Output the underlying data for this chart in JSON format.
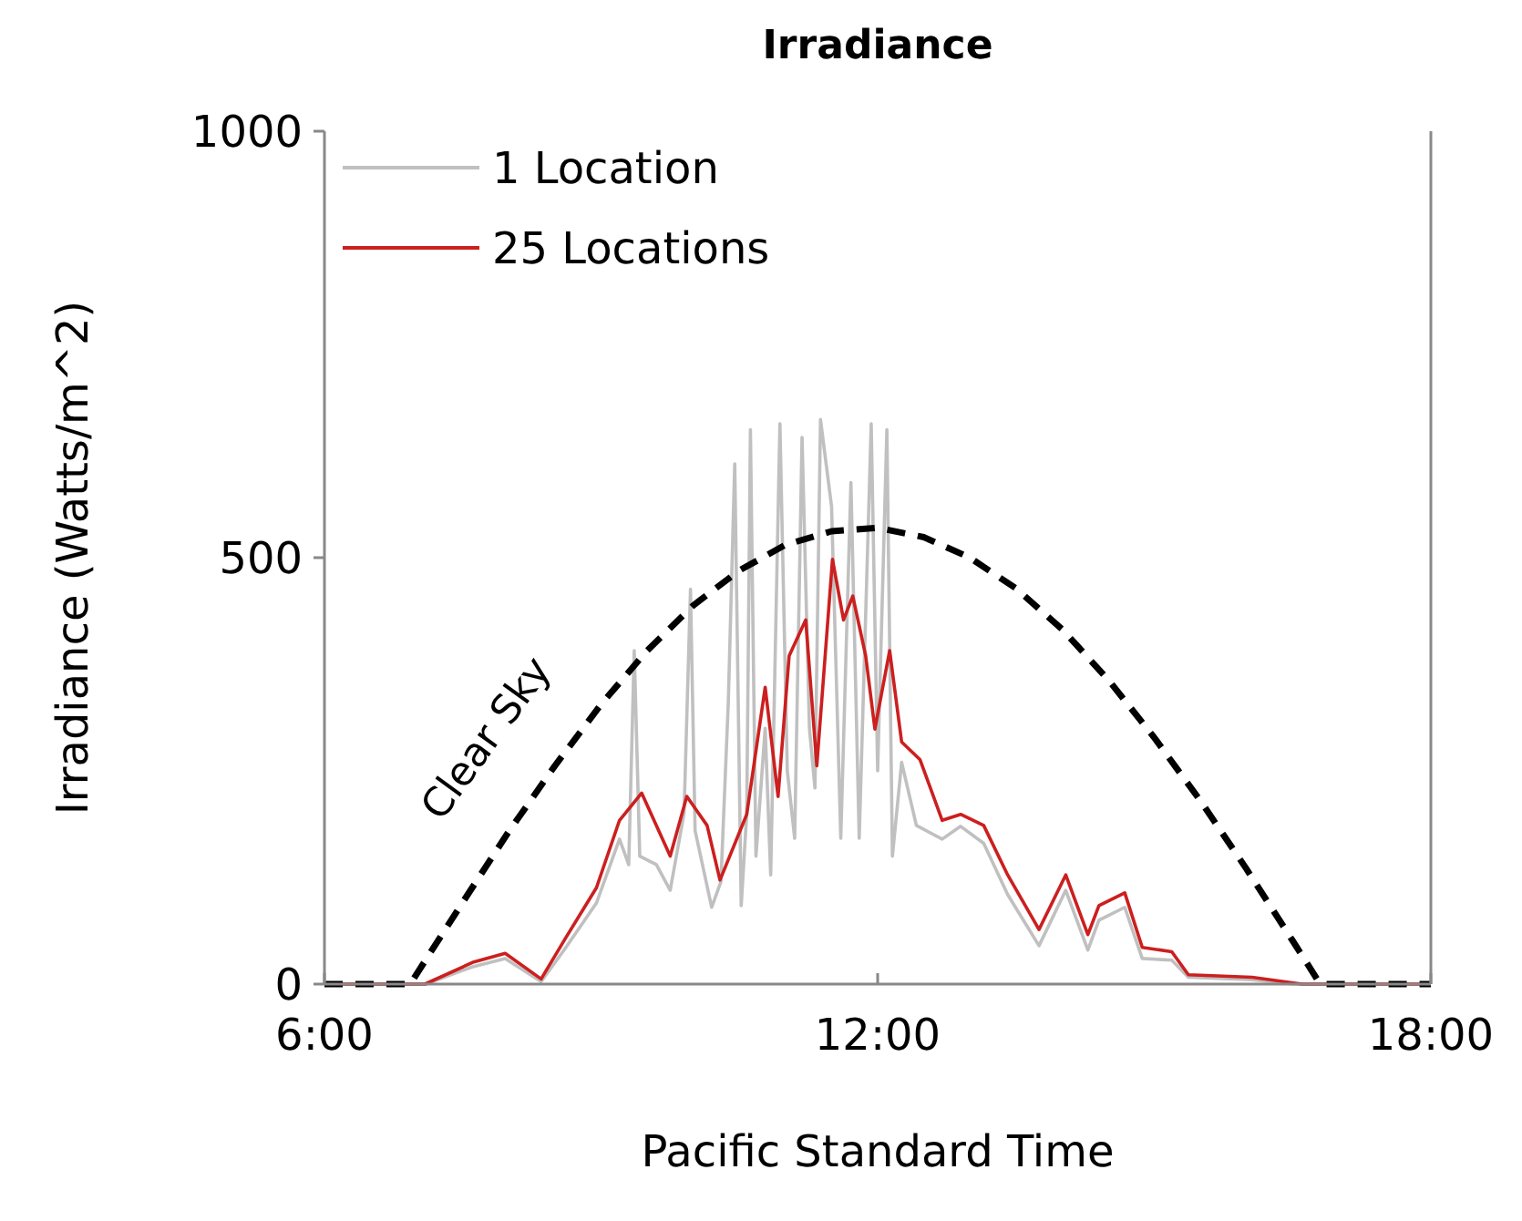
{
  "chart_data": {
    "type": "line",
    "title": "Irradiance",
    "xlabel": "Pacific Standard Time",
    "ylabel": "Irradiance (Watts/m^2)",
    "xlim": [
      6,
      18
    ],
    "xticks": [
      {
        "value": 6,
        "label": "6:00"
      },
      {
        "value": 12,
        "label": "12:00"
      },
      {
        "value": 18,
        "label": "18:00"
      }
    ],
    "ylim": [
      0,
      1000
    ],
    "yticks": [
      0,
      500,
      1000
    ],
    "grid": false,
    "legend": "top left",
    "marker": "none",
    "series": [
      {
        "name": "1 Location",
        "color": "#c0c0c0",
        "line_style": "solid",
        "x": [
          6,
          7.1,
          7.6,
          7.96,
          8.35,
          8.6,
          8.95,
          9.2,
          9.3,
          9.36,
          9.42,
          9.6,
          9.75,
          9.9,
          9.97,
          10.02,
          10.2,
          10.3,
          10.38,
          10.45,
          10.52,
          10.58,
          10.62,
          10.68,
          10.78,
          10.84,
          10.94,
          11.02,
          11.1,
          11.18,
          11.26,
          11.32,
          11.38,
          11.5,
          11.6,
          11.71,
          11.8,
          11.93,
          12.0,
          12.1,
          12.16,
          12.26,
          12.42,
          12.7,
          12.9,
          13.15,
          13.41,
          13.75,
          14.04,
          14.28,
          14.4,
          14.68,
          14.87,
          15.19,
          15.37,
          16.06,
          16.5,
          18
        ],
        "values": [
          0,
          0,
          20,
          30,
          3,
          40,
          95,
          170,
          140,
          391,
          150,
          140,
          110,
          200,
          463,
          180,
          90,
          120,
          330,
          610,
          92,
          200,
          650,
          150,
          300,
          128,
          657,
          250,
          171,
          641,
          300,
          230,
          662,
          560,
          171,
          588,
          171,
          657,
          250,
          650,
          150,
          260,
          186,
          170,
          185,
          165,
          105,
          45,
          110,
          40,
          75,
          90,
          30,
          28,
          8,
          5,
          0,
          0
        ]
      },
      {
        "name": "25 Locations",
        "color": "#cc1f1f",
        "line_style": "solid",
        "x": [
          6,
          7.09,
          7.62,
          7.96,
          8.35,
          8.61,
          8.95,
          9.2,
          9.44,
          9.75,
          9.93,
          10.15,
          10.29,
          10.58,
          10.78,
          10.92,
          11.04,
          11.22,
          11.34,
          11.51,
          11.63,
          11.73,
          11.87,
          11.97,
          12.13,
          12.26,
          12.46,
          12.7,
          12.9,
          13.15,
          13.41,
          13.75,
          14.04,
          14.28,
          14.4,
          14.68,
          14.87,
          15.19,
          15.37,
          16.06,
          16.6,
          18
        ],
        "values": [
          0,
          0,
          26,
          36,
          6,
          53,
          113,
          192,
          224,
          150,
          220,
          186,
          122,
          199,
          348,
          220,
          385,
          427,
          256,
          498,
          427,
          455,
          385,
          299,
          391,
          284,
          263,
          192,
          199,
          186,
          128,
          64,
          128,
          58,
          92,
          107,
          43,
          38,
          11,
          8,
          0,
          0
        ]
      },
      {
        "name": "Clear Sky",
        "color": "#000000",
        "line_style": "dashed",
        "x": [
          6,
          6.93,
          7.5,
          8,
          8.5,
          9,
          9.5,
          10,
          10.5,
          11,
          11.5,
          12,
          12.5,
          13,
          13.5,
          14,
          14.5,
          15,
          15.5,
          16,
          16.5,
          16.8,
          18
        ],
        "values": [
          0,
          0,
          96,
          179,
          256,
          328,
          391,
          444,
          485,
          515,
          531,
          535,
          524,
          500,
          464,
          416,
          357,
          289,
          215,
          135,
          51,
          0,
          0
        ]
      }
    ]
  }
}
